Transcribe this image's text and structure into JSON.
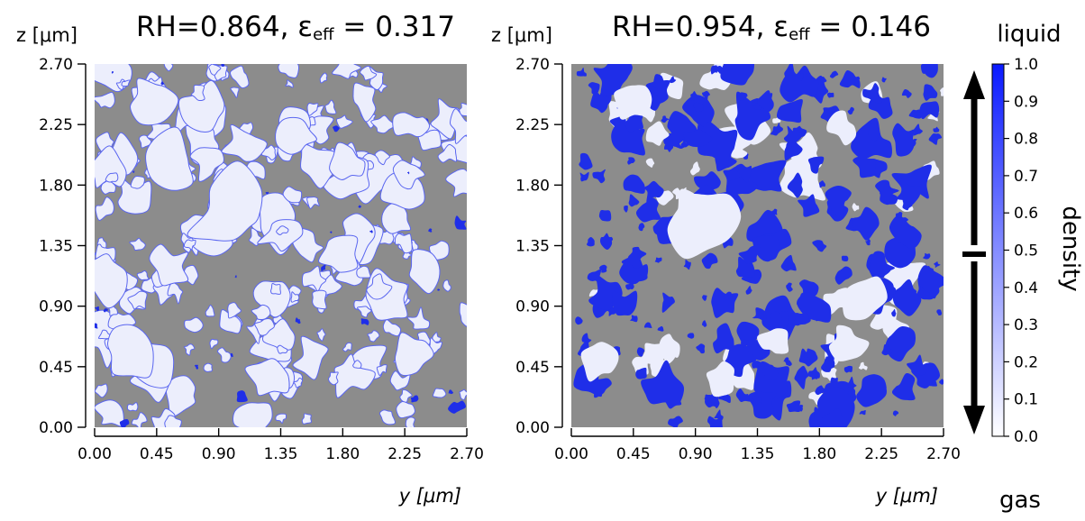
{
  "chart_data": [
    {
      "type": "heatmap",
      "title_prefix": "RH=0.864, ε",
      "title_sub": "eff",
      "title_suffix": " = 0.317",
      "ylabel": "z [μm]",
      "xlabel": "y [μm]",
      "x_ticks": [
        "0.00",
        "0.45",
        "0.90",
        "1.35",
        "1.80",
        "2.25",
        "2.70"
      ],
      "y_ticks": [
        "0.00",
        "0.45",
        "0.90",
        "1.35",
        "1.80",
        "2.25",
        "2.70"
      ],
      "xlim": [
        0,
        2.7
      ],
      "ylim": [
        0,
        2.7
      ],
      "RH": 0.864,
      "epsilon_eff": 0.317
    },
    {
      "type": "heatmap",
      "title_prefix": "RH=0.954, ε",
      "title_sub": "eff",
      "title_suffix": " = 0.146",
      "ylabel": "z [μm]",
      "xlabel": "y [μm]",
      "x_ticks": [
        "0.00",
        "0.45",
        "0.90",
        "1.35",
        "1.80",
        "2.25",
        "2.70"
      ],
      "y_ticks": [
        "0.00",
        "0.45",
        "0.90",
        "1.35",
        "1.80",
        "2.25",
        "2.70"
      ],
      "xlim": [
        0,
        2.7
      ],
      "ylim": [
        0,
        2.7
      ],
      "RH": 0.954,
      "epsilon_eff": 0.146
    }
  ],
  "colorbar": {
    "label": "density",
    "top_label": "liquid",
    "bottom_label": "gas",
    "ticks": [
      "1.0",
      "0.9",
      "0.8",
      "0.7",
      "0.6",
      "0.5",
      "0.4",
      "0.3",
      "0.2",
      "0.1",
      "0.0"
    ],
    "range": [
      0,
      1
    ],
    "color_low": "#ffffff",
    "color_high": "#0a1aff"
  },
  "colors": {
    "solid": "#8c8c8c",
    "gas": "#eceefc",
    "liquid": "#1f2ee8"
  }
}
